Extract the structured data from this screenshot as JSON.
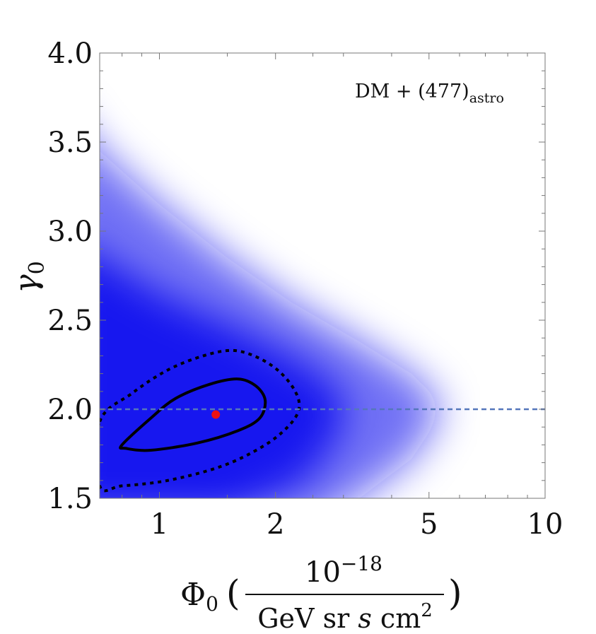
{
  "chart_data": {
    "type": "heatmap",
    "x_scale": "log",
    "x_range": [
      0.7,
      10
    ],
    "y_range": [
      1.5,
      4.0
    ],
    "x_ticks": [
      1,
      2,
      5,
      10
    ],
    "x_tick_labels": [
      "1",
      "2",
      "5",
      "10"
    ],
    "y_ticks": [
      1.5,
      2.0,
      2.5,
      3.0,
      3.5,
      4.0
    ],
    "y_tick_labels": [
      "1.5",
      "2.0",
      "2.5",
      "3.0",
      "3.5",
      "4.0"
    ],
    "xlabel": {
      "symbol": "Φ",
      "symbol_sub": "0",
      "numerator_base": "10",
      "numerator_exp": "−18",
      "denominator_main": "GeV sr ",
      "denominator_italic": "s",
      "denominator_unit": " cm",
      "denominator_exp": "2"
    },
    "ylabel": {
      "symbol": "γ",
      "sub": "0"
    },
    "annotation": {
      "main": "DM + (477)",
      "sub": "astro",
      "position": "top-right"
    },
    "best_fit": {
      "x": 1.4,
      "y": 1.97,
      "color": "#ee1111"
    },
    "reference_line": {
      "y": 2.0,
      "style": "dashed",
      "color": "#5577bb"
    },
    "contour_1sigma": {
      "style": "solid",
      "points": [
        [
          0.8,
          1.8
        ],
        [
          0.95,
          1.95
        ],
        [
          1.1,
          2.06
        ],
        [
          1.35,
          2.14
        ],
        [
          1.6,
          2.17
        ],
        [
          1.78,
          2.13
        ],
        [
          1.88,
          2.05
        ],
        [
          1.82,
          1.95
        ],
        [
          1.6,
          1.88
        ],
        [
          1.25,
          1.81
        ],
        [
          0.95,
          1.77
        ],
        [
          0.82,
          1.78
        ]
      ]
    },
    "contour_2sigma": {
      "style": "dotted",
      "points": [
        [
          0.7,
          1.93
        ],
        [
          0.85,
          2.09
        ],
        [
          1.05,
          2.22
        ],
        [
          1.3,
          2.3
        ],
        [
          1.55,
          2.33
        ],
        [
          1.8,
          2.29
        ],
        [
          2.05,
          2.21
        ],
        [
          2.25,
          2.1
        ],
        [
          2.3,
          2.0
        ],
        [
          2.15,
          1.9
        ],
        [
          1.85,
          1.79
        ],
        [
          1.45,
          1.68
        ],
        [
          1.05,
          1.6
        ],
        [
          0.8,
          1.57
        ],
        [
          0.7,
          1.57
        ]
      ]
    },
    "heatmap_color": "#1010ee"
  }
}
